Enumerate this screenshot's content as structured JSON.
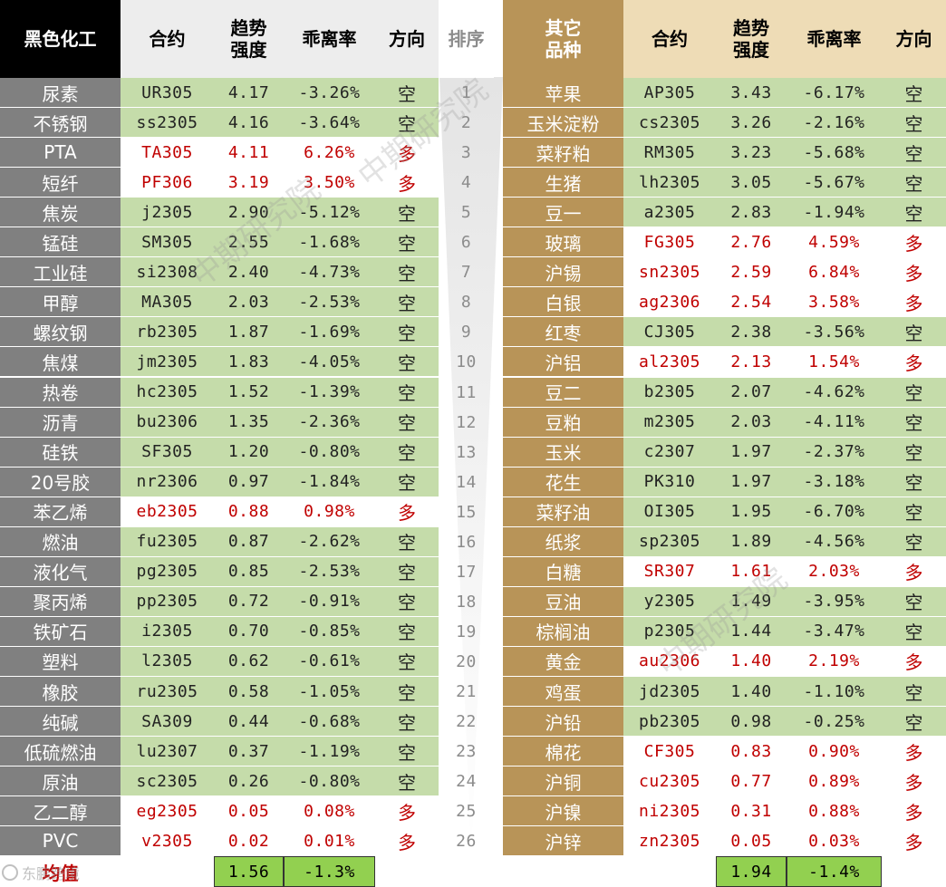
{
  "colors": {
    "black_header_bg": "#000000",
    "black_header_fg": "#ffffff",
    "gray_col_bg": "#808080",
    "gray_col_fg": "#ffffff",
    "gold_col_bg": "#b89458",
    "gold_col_fg": "#ffffff",
    "header_light_bg": "#ededed",
    "gold_header_bg": "#eedcb6",
    "green_row_bg": "#c5dcaa",
    "white_row_bg": "#ffffff",
    "green_text": "#222222",
    "red_text": "#c00000",
    "avg_cell_bg": "#92d050",
    "rank_text": "#8c8c8c"
  },
  "left": {
    "headers": {
      "category": "黑色化工",
      "contract": "合约",
      "trend_line1": "趋势",
      "trend_line2": "强度",
      "deviation": "乖离率",
      "direction": "方向"
    },
    "rows": [
      {
        "name": "尿素",
        "contract": "UR305",
        "trend": "4.17",
        "dev": "-3.26%",
        "dir": "空",
        "style": "green"
      },
      {
        "name": "不锈钢",
        "contract": "ss2305",
        "trend": "4.16",
        "dev": "-3.64%",
        "dir": "空",
        "style": "green"
      },
      {
        "name": "PTA",
        "contract": "TA305",
        "trend": "4.11",
        "dev": "6.26%",
        "dir": "多",
        "style": "white"
      },
      {
        "name": "短纤",
        "contract": "PF306",
        "trend": "3.19",
        "dev": "3.50%",
        "dir": "多",
        "style": "white"
      },
      {
        "name": "焦炭",
        "contract": "j2305",
        "trend": "2.90",
        "dev": "-5.12%",
        "dir": "空",
        "style": "green"
      },
      {
        "name": "锰硅",
        "contract": "SM305",
        "trend": "2.55",
        "dev": "-1.68%",
        "dir": "空",
        "style": "green"
      },
      {
        "name": "工业硅",
        "contract": "si2308",
        "trend": "2.40",
        "dev": "-4.73%",
        "dir": "空",
        "style": "green"
      },
      {
        "name": "甲醇",
        "contract": "MA305",
        "trend": "2.03",
        "dev": "-2.53%",
        "dir": "空",
        "style": "green"
      },
      {
        "name": "螺纹钢",
        "contract": "rb2305",
        "trend": "1.87",
        "dev": "-1.69%",
        "dir": "空",
        "style": "green"
      },
      {
        "name": "焦煤",
        "contract": "jm2305",
        "trend": "1.83",
        "dev": "-4.05%",
        "dir": "空",
        "style": "green"
      },
      {
        "name": "热卷",
        "contract": "hc2305",
        "trend": "1.52",
        "dev": "-1.39%",
        "dir": "空",
        "style": "green"
      },
      {
        "name": "沥青",
        "contract": "bu2306",
        "trend": "1.35",
        "dev": "-2.36%",
        "dir": "空",
        "style": "green"
      },
      {
        "name": "硅铁",
        "contract": "SF305",
        "trend": "1.20",
        "dev": "-0.80%",
        "dir": "空",
        "style": "green"
      },
      {
        "name": "20号胶",
        "contract": "nr2306",
        "trend": "0.97",
        "dev": "-1.84%",
        "dir": "空",
        "style": "green"
      },
      {
        "name": "苯乙烯",
        "contract": "eb2305",
        "trend": "0.88",
        "dev": "0.98%",
        "dir": "多",
        "style": "white"
      },
      {
        "name": "燃油",
        "contract": "fu2305",
        "trend": "0.87",
        "dev": "-2.62%",
        "dir": "空",
        "style": "green"
      },
      {
        "name": "液化气",
        "contract": "pg2305",
        "trend": "0.85",
        "dev": "-2.53%",
        "dir": "空",
        "style": "green"
      },
      {
        "name": "聚丙烯",
        "contract": "pp2305",
        "trend": "0.72",
        "dev": "-0.91%",
        "dir": "空",
        "style": "green"
      },
      {
        "name": "铁矿石",
        "contract": "i2305",
        "trend": "0.70",
        "dev": "-0.85%",
        "dir": "空",
        "style": "green"
      },
      {
        "name": "塑料",
        "contract": "l2305",
        "trend": "0.62",
        "dev": "-0.61%",
        "dir": "空",
        "style": "green"
      },
      {
        "name": "橡胶",
        "contract": "ru2305",
        "trend": "0.58",
        "dev": "-1.05%",
        "dir": "空",
        "style": "green"
      },
      {
        "name": "纯碱",
        "contract": "SA309",
        "trend": "0.44",
        "dev": "-0.68%",
        "dir": "空",
        "style": "green"
      },
      {
        "name": "低硫燃油",
        "contract": "lu2307",
        "trend": "0.37",
        "dev": "-1.19%",
        "dir": "空",
        "style": "green"
      },
      {
        "name": "原油",
        "contract": "sc2305",
        "trend": "0.26",
        "dev": "-0.80%",
        "dir": "空",
        "style": "green"
      },
      {
        "name": "乙二醇",
        "contract": "eg2305",
        "trend": "0.05",
        "dev": "0.08%",
        "dir": "多",
        "style": "white"
      },
      {
        "name": "PVC",
        "contract": "v2305",
        "trend": "0.02",
        "dev": "0.01%",
        "dir": "多",
        "style": "white"
      }
    ],
    "avg_label": "均值",
    "avg_trend": "1.56",
    "avg_dev": "-1.3%"
  },
  "rank": {
    "header": "排序",
    "numbers": [
      "1",
      "2",
      "3",
      "4",
      "5",
      "6",
      "7",
      "8",
      "9",
      "10",
      "11",
      "12",
      "13",
      "14",
      "15",
      "16",
      "17",
      "18",
      "19",
      "20",
      "21",
      "22",
      "23",
      "24",
      "25",
      "26"
    ]
  },
  "right": {
    "headers": {
      "category_line1": "其它",
      "category_line2": "品种",
      "contract": "合约",
      "trend_line1": "趋势",
      "trend_line2": "强度",
      "deviation": "乖离率",
      "direction": "方向"
    },
    "rows": [
      {
        "name": "苹果",
        "contract": "AP305",
        "trend": "3.43",
        "dev": "-6.17%",
        "dir": "空",
        "style": "green"
      },
      {
        "name": "玉米淀粉",
        "contract": "cs2305",
        "trend": "3.26",
        "dev": "-2.16%",
        "dir": "空",
        "style": "green"
      },
      {
        "name": "菜籽粕",
        "contract": "RM305",
        "trend": "3.23",
        "dev": "-5.68%",
        "dir": "空",
        "style": "green"
      },
      {
        "name": "生猪",
        "contract": "lh2305",
        "trend": "3.05",
        "dev": "-5.67%",
        "dir": "空",
        "style": "green"
      },
      {
        "name": "豆一",
        "contract": "a2305",
        "trend": "2.83",
        "dev": "-1.94%",
        "dir": "空",
        "style": "green"
      },
      {
        "name": "玻璃",
        "contract": "FG305",
        "trend": "2.76",
        "dev": "4.59%",
        "dir": "多",
        "style": "white"
      },
      {
        "name": "沪锡",
        "contract": "sn2305",
        "trend": "2.59",
        "dev": "6.84%",
        "dir": "多",
        "style": "white"
      },
      {
        "name": "白银",
        "contract": "ag2306",
        "trend": "2.54",
        "dev": "3.58%",
        "dir": "多",
        "style": "white"
      },
      {
        "name": "红枣",
        "contract": "CJ305",
        "trend": "2.38",
        "dev": "-3.56%",
        "dir": "空",
        "style": "green"
      },
      {
        "name": "沪铝",
        "contract": "al2305",
        "trend": "2.13",
        "dev": "1.54%",
        "dir": "多",
        "style": "white"
      },
      {
        "name": "豆二",
        "contract": "b2305",
        "trend": "2.07",
        "dev": "-4.62%",
        "dir": "空",
        "style": "green"
      },
      {
        "name": "豆粕",
        "contract": "m2305",
        "trend": "2.03",
        "dev": "-4.11%",
        "dir": "空",
        "style": "green"
      },
      {
        "name": "玉米",
        "contract": "c2307",
        "trend": "1.97",
        "dev": "-2.37%",
        "dir": "空",
        "style": "green"
      },
      {
        "name": "花生",
        "contract": "PK310",
        "trend": "1.97",
        "dev": "-3.18%",
        "dir": "空",
        "style": "green"
      },
      {
        "name": "菜籽油",
        "contract": "OI305",
        "trend": "1.95",
        "dev": "-6.70%",
        "dir": "空",
        "style": "green"
      },
      {
        "name": "纸浆",
        "contract": "sp2305",
        "trend": "1.89",
        "dev": "-4.56%",
        "dir": "空",
        "style": "green"
      },
      {
        "name": "白糖",
        "contract": "SR307",
        "trend": "1.61",
        "dev": "2.03%",
        "dir": "多",
        "style": "white"
      },
      {
        "name": "豆油",
        "contract": "y2305",
        "trend": "1.49",
        "dev": "-3.95%",
        "dir": "空",
        "style": "green"
      },
      {
        "name": "棕榈油",
        "contract": "p2305",
        "trend": "1.44",
        "dev": "-3.47%",
        "dir": "空",
        "style": "green"
      },
      {
        "name": "黄金",
        "contract": "au2306",
        "trend": "1.40",
        "dev": "2.19%",
        "dir": "多",
        "style": "white"
      },
      {
        "name": "鸡蛋",
        "contract": "jd2305",
        "trend": "1.40",
        "dev": "-1.10%",
        "dir": "空",
        "style": "green"
      },
      {
        "name": "沪铅",
        "contract": "pb2305",
        "trend": "0.98",
        "dev": "-0.25%",
        "dir": "空",
        "style": "green"
      },
      {
        "name": "棉花",
        "contract": "CF305",
        "trend": "0.83",
        "dev": "0.90%",
        "dir": "多",
        "style": "white"
      },
      {
        "name": "沪铜",
        "contract": "cu2305",
        "trend": "0.77",
        "dev": "0.89%",
        "dir": "多",
        "style": "white"
      },
      {
        "name": "沪镍",
        "contract": "ni2305",
        "trend": "0.31",
        "dev": "0.88%",
        "dir": "多",
        "style": "white"
      },
      {
        "name": "沪锌",
        "contract": "zn2305",
        "trend": "0.05",
        "dev": "0.03%",
        "dir": "多",
        "style": "white"
      }
    ],
    "avg_trend": "1.94",
    "avg_dev": "-1.4%"
  },
  "watermarks": {
    "mark1": "中期研究院",
    "mark2": "中期研究院",
    "mark3": "中期研究院",
    "footer_logo": "东鹏跨境"
  }
}
